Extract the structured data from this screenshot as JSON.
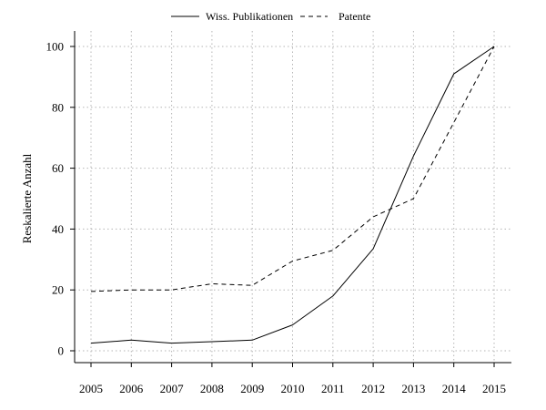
{
  "chart_data": {
    "type": "line",
    "title": "",
    "xlabel": "",
    "ylabel": "Reskalierte Anzahl",
    "x": [
      2005,
      2006,
      2007,
      2008,
      2009,
      2010,
      2011,
      2012,
      2013,
      2014,
      2015
    ],
    "x_tick_labels": [
      "2005",
      "2006",
      "2007",
      "2008",
      "2009",
      "2010",
      "2011",
      "2012",
      "2013",
      "2014",
      "2015"
    ],
    "y_ticks": [
      0,
      20,
      40,
      60,
      80,
      100
    ],
    "y_tick_labels": [
      "0",
      "20",
      "40",
      "60",
      "80",
      "100"
    ],
    "xlim": [
      2005,
      2015
    ],
    "ylim": [
      0,
      100
    ],
    "grid": true,
    "legend_position": "top-center",
    "series": [
      {
        "name": "Wiss. Publikationen",
        "line_style": "solid",
        "color": "#000000",
        "values": [
          2.5,
          3.5,
          2.5,
          3.0,
          3.5,
          8.5,
          18.0,
          33.5,
          64.0,
          91.0,
          100.0
        ]
      },
      {
        "name": "Patente",
        "line_style": "dashed",
        "color": "#000000",
        "values": [
          19.5,
          20.0,
          20.0,
          22.0,
          21.5,
          29.5,
          33.0,
          44.0,
          50.0,
          75.0,
          100.0
        ]
      }
    ]
  }
}
